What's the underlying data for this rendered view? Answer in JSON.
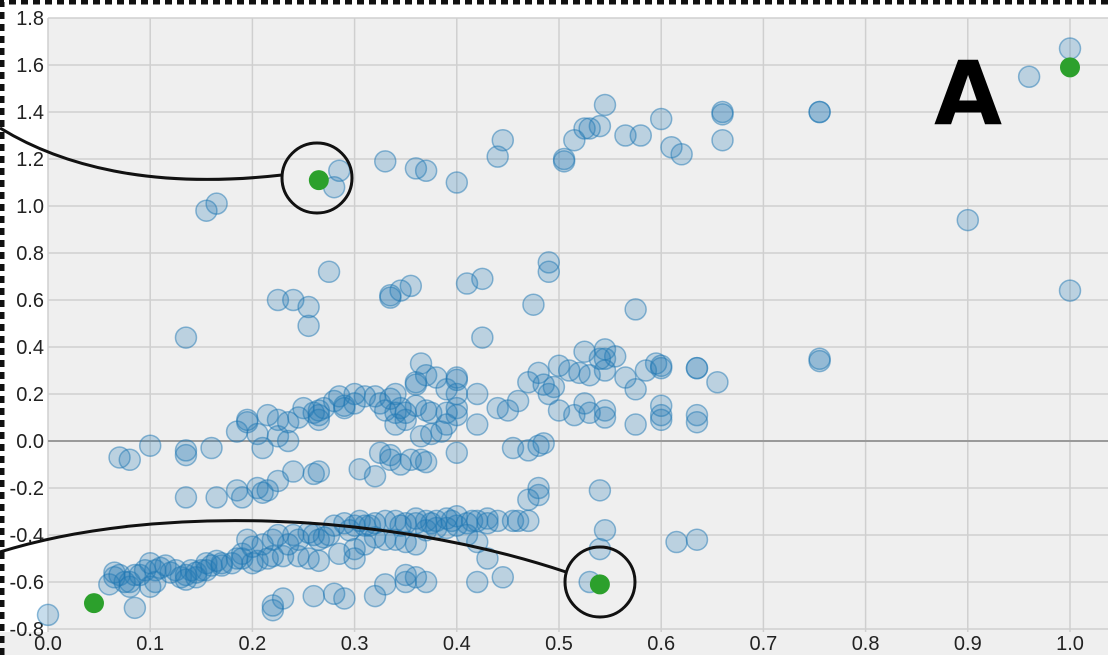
{
  "panel_label": "A",
  "colors": {
    "background": "#efefef",
    "grid": "#cfcfcf",
    "zero_line": "#9a9a9a",
    "point_fill": "#1f77b4",
    "point_stroke": "#1f77b4",
    "highlight": "#2ca02c",
    "border": "#111111"
  },
  "chart_data": {
    "type": "scatter",
    "title": "",
    "xlabel": "",
    "ylabel": "",
    "xlim": [
      0,
      1.04
    ],
    "ylim": [
      -0.8,
      1.8
    ],
    "grid": true,
    "xticks": [
      "0.0",
      "0.1",
      "0.2",
      "0.3",
      "0.4",
      "0.5",
      "0.6",
      "0.7",
      "0.8",
      "0.9",
      "1.0"
    ],
    "yticks": [
      "-0.8",
      "-0.6",
      "-0.4",
      "-0.2",
      "0.0",
      "0.2",
      "0.4",
      "0.6",
      "0.8",
      "1.0",
      "1.2",
      "1.4",
      "1.6",
      "1.8"
    ],
    "series": [
      {
        "points": [
          [
            0.155,
            0.98
          ],
          [
            0.165,
            1.01
          ],
          [
            0.285,
            1.15
          ],
          [
            0.28,
            1.08
          ],
          [
            0.33,
            1.19
          ],
          [
            0.36,
            1.16
          ],
          [
            0.37,
            1.15
          ],
          [
            0.4,
            1.1
          ],
          [
            0.44,
            1.21
          ],
          [
            0.445,
            1.28
          ],
          [
            0.505,
            1.19
          ],
          [
            0.505,
            1.2
          ],
          [
            0.515,
            1.28
          ],
          [
            0.525,
            1.33
          ],
          [
            0.53,
            1.33
          ],
          [
            0.54,
            1.34
          ],
          [
            0.545,
            1.43
          ],
          [
            0.565,
            1.3
          ],
          [
            0.58,
            1.3
          ],
          [
            0.6,
            1.37
          ],
          [
            0.61,
            1.25
          ],
          [
            0.62,
            1.22
          ],
          [
            0.66,
            1.28
          ],
          [
            0.66,
            1.39
          ],
          [
            0.66,
            1.4
          ],
          [
            0.755,
            1.4
          ],
          [
            0.755,
            1.4
          ],
          [
            0.96,
            1.55
          ],
          [
            1.0,
            1.67
          ],
          [
            0.9,
            0.94
          ],
          [
            1.0,
            0.64
          ],
          [
            0.755,
            0.35
          ],
          [
            0.755,
            0.34
          ],
          [
            0.135,
            0.44
          ],
          [
            0.225,
            0.6
          ],
          [
            0.24,
            0.6
          ],
          [
            0.255,
            0.57
          ],
          [
            0.255,
            0.49
          ],
          [
            0.275,
            0.72
          ],
          [
            0.335,
            0.62
          ],
          [
            0.335,
            0.61
          ],
          [
            0.345,
            0.64
          ],
          [
            0.355,
            0.66
          ],
          [
            0.41,
            0.67
          ],
          [
            0.425,
            0.69
          ],
          [
            0.425,
            0.44
          ],
          [
            0.49,
            0.76
          ],
          [
            0.49,
            0.72
          ],
          [
            0.475,
            0.58
          ],
          [
            0.575,
            0.56
          ],
          [
            0.5,
            0.32
          ],
          [
            0.51,
            0.3
          ],
          [
            0.52,
            0.29
          ],
          [
            0.525,
            0.38
          ],
          [
            0.53,
            0.28
          ],
          [
            0.54,
            0.35
          ],
          [
            0.545,
            0.39
          ],
          [
            0.545,
            0.35
          ],
          [
            0.555,
            0.36
          ],
          [
            0.545,
            0.3
          ],
          [
            0.565,
            0.27
          ],
          [
            0.575,
            0.22
          ],
          [
            0.585,
            0.3
          ],
          [
            0.595,
            0.33
          ],
          [
            0.6,
            0.32
          ],
          [
            0.6,
            0.31
          ],
          [
            0.635,
            0.31
          ],
          [
            0.635,
            0.31
          ],
          [
            0.655,
            0.25
          ],
          [
            0.6,
            0.15
          ],
          [
            0.6,
            0.11
          ],
          [
            0.6,
            0.09
          ],
          [
            0.635,
            0.11
          ],
          [
            0.635,
            0.08
          ],
          [
            0.575,
            0.07
          ],
          [
            0.545,
            0.1
          ],
          [
            0.545,
            0.13
          ],
          [
            0.53,
            0.12
          ],
          [
            0.525,
            0.16
          ],
          [
            0.515,
            0.11
          ],
          [
            0.5,
            0.13
          ],
          [
            0.49,
            0.2
          ],
          [
            0.485,
            0.24
          ],
          [
            0.48,
            0.29
          ],
          [
            0.47,
            0.25
          ],
          [
            0.495,
            0.23
          ],
          [
            0.44,
            0.14
          ],
          [
            0.45,
            0.13
          ],
          [
            0.46,
            0.17
          ],
          [
            0.42,
            0.2
          ],
          [
            0.42,
            0.07
          ],
          [
            0.485,
            -0.01
          ],
          [
            0.48,
            -0.02
          ],
          [
            0.47,
            -0.04
          ],
          [
            0.455,
            -0.03
          ],
          [
            0.4,
            0.27
          ],
          [
            0.4,
            0.26
          ],
          [
            0.4,
            0.2
          ],
          [
            0.39,
            0.22
          ],
          [
            0.38,
            0.27
          ],
          [
            0.37,
            0.28
          ],
          [
            0.365,
            0.33
          ],
          [
            0.36,
            0.25
          ],
          [
            0.36,
            0.24
          ],
          [
            0.36,
            0.15
          ],
          [
            0.37,
            0.13
          ],
          [
            0.375,
            0.12
          ],
          [
            0.39,
            0.12
          ],
          [
            0.4,
            0.14
          ],
          [
            0.4,
            0.11
          ],
          [
            0.39,
            0.07
          ],
          [
            0.385,
            0.04
          ],
          [
            0.375,
            0.03
          ],
          [
            0.365,
            0.02
          ],
          [
            0.34,
            0.2
          ],
          [
            0.335,
            0.18
          ],
          [
            0.33,
            0.13
          ],
          [
            0.34,
            0.12
          ],
          [
            0.345,
            0.14
          ],
          [
            0.35,
            0.12
          ],
          [
            0.35,
            0.09
          ],
          [
            0.34,
            0.07
          ],
          [
            0.325,
            0.16
          ],
          [
            0.32,
            0.19
          ],
          [
            0.31,
            0.19
          ],
          [
            0.3,
            0.2
          ],
          [
            0.3,
            0.16
          ],
          [
            0.29,
            0.14
          ],
          [
            0.29,
            0.15
          ],
          [
            0.285,
            0.19
          ],
          [
            0.28,
            0.17
          ],
          [
            0.27,
            0.14
          ],
          [
            0.265,
            0.13
          ],
          [
            0.265,
            0.11
          ],
          [
            0.265,
            0.09
          ],
          [
            0.26,
            0.12
          ],
          [
            0.25,
            0.14
          ],
          [
            0.245,
            0.1
          ],
          [
            0.235,
            0.08
          ],
          [
            0.225,
            0.09
          ],
          [
            0.215,
            0.11
          ],
          [
            0.205,
            0.03
          ],
          [
            0.195,
            0.09
          ],
          [
            0.195,
            0.08
          ],
          [
            0.185,
            0.04
          ],
          [
            0.235,
            0.0
          ],
          [
            0.225,
            0.02
          ],
          [
            0.21,
            -0.03
          ],
          [
            0.16,
            -0.03
          ],
          [
            0.135,
            -0.04
          ],
          [
            0.135,
            -0.06
          ],
          [
            0.1,
            -0.02
          ],
          [
            0.07,
            -0.07
          ],
          [
            0.08,
            -0.08
          ],
          [
            0.37,
            -0.09
          ],
          [
            0.365,
            -0.08
          ],
          [
            0.355,
            -0.08
          ],
          [
            0.345,
            -0.1
          ],
          [
            0.335,
            -0.06
          ],
          [
            0.325,
            -0.05
          ],
          [
            0.335,
            -0.08
          ],
          [
            0.32,
            -0.15
          ],
          [
            0.305,
            -0.12
          ],
          [
            0.4,
            -0.05
          ],
          [
            0.265,
            -0.13
          ],
          [
            0.26,
            -0.14
          ],
          [
            0.24,
            -0.13
          ],
          [
            0.225,
            -0.17
          ],
          [
            0.215,
            -0.21
          ],
          [
            0.21,
            -0.22
          ],
          [
            0.205,
            -0.2
          ],
          [
            0.19,
            -0.24
          ],
          [
            0.185,
            -0.21
          ],
          [
            0.165,
            -0.24
          ],
          [
            0.135,
            -0.24
          ],
          [
            0.54,
            -0.21
          ],
          [
            0.48,
            -0.2
          ],
          [
            0.48,
            -0.23
          ],
          [
            0.47,
            -0.25
          ],
          [
            0.47,
            -0.34
          ],
          [
            0.46,
            -0.34
          ],
          [
            0.455,
            -0.34
          ],
          [
            0.44,
            -0.34
          ],
          [
            0.43,
            -0.35
          ],
          [
            0.43,
            -0.33
          ],
          [
            0.42,
            -0.34
          ],
          [
            0.415,
            -0.34
          ],
          [
            0.41,
            -0.35
          ],
          [
            0.4,
            -0.32
          ],
          [
            0.39,
            -0.33
          ],
          [
            0.38,
            -0.34
          ],
          [
            0.375,
            -0.35
          ],
          [
            0.37,
            -0.34
          ],
          [
            0.36,
            -0.35
          ],
          [
            0.36,
            -0.33
          ],
          [
            0.35,
            -0.35
          ],
          [
            0.345,
            -0.36
          ],
          [
            0.34,
            -0.34
          ],
          [
            0.33,
            -0.34
          ],
          [
            0.32,
            -0.35
          ],
          [
            0.315,
            -0.36
          ],
          [
            0.31,
            -0.36
          ],
          [
            0.305,
            -0.34
          ],
          [
            0.3,
            -0.36
          ],
          [
            0.295,
            -0.38
          ],
          [
            0.29,
            -0.35
          ],
          [
            0.28,
            -0.36
          ],
          [
            0.275,
            -0.4
          ],
          [
            0.27,
            -0.41
          ],
          [
            0.265,
            -0.42
          ],
          [
            0.26,
            -0.4
          ],
          [
            0.255,
            -0.39
          ],
          [
            0.245,
            -0.42
          ],
          [
            0.24,
            -0.4
          ],
          [
            0.235,
            -0.44
          ],
          [
            0.225,
            -0.4
          ],
          [
            0.22,
            -0.42
          ],
          [
            0.21,
            -0.44
          ],
          [
            0.2,
            -0.45
          ],
          [
            0.195,
            -0.42
          ],
          [
            0.19,
            -0.48
          ],
          [
            0.185,
            -0.5
          ],
          [
            0.17,
            -0.52
          ],
          [
            0.165,
            -0.51
          ],
          [
            0.16,
            -0.53
          ],
          [
            0.155,
            -0.52
          ],
          [
            0.15,
            -0.55
          ],
          [
            0.145,
            -0.56
          ],
          [
            0.14,
            -0.55
          ],
          [
            0.135,
            -0.57
          ],
          [
            0.13,
            -0.58
          ],
          [
            0.125,
            -0.55
          ],
          [
            0.12,
            -0.56
          ],
          [
            0.115,
            -0.53
          ],
          [
            0.11,
            -0.54
          ],
          [
            0.105,
            -0.55
          ],
          [
            0.1,
            -0.52
          ],
          [
            0.095,
            -0.55
          ],
          [
            0.09,
            -0.57
          ],
          [
            0.085,
            -0.57
          ],
          [
            0.08,
            -0.6
          ],
          [
            0.075,
            -0.6
          ],
          [
            0.07,
            -0.57
          ],
          [
            0.065,
            -0.56
          ],
          [
            0.06,
            -0.61
          ],
          [
            0.105,
            -0.6
          ],
          [
            0.1,
            -0.62
          ],
          [
            0.08,
            -0.62
          ],
          [
            0.085,
            -0.71
          ],
          [
            0.135,
            -0.59
          ],
          [
            0.145,
            -0.58
          ],
          [
            0.155,
            -0.55
          ],
          [
            0.17,
            -0.53
          ],
          [
            0.18,
            -0.52
          ],
          [
            0.19,
            -0.5
          ],
          [
            0.2,
            -0.52
          ],
          [
            0.205,
            -0.51
          ],
          [
            0.215,
            -0.5
          ],
          [
            0.22,
            -0.49
          ],
          [
            0.23,
            -0.49
          ],
          [
            0.245,
            -0.49
          ],
          [
            0.255,
            -0.5
          ],
          [
            0.265,
            -0.51
          ],
          [
            0.285,
            -0.48
          ],
          [
            0.3,
            -0.46
          ],
          [
            0.3,
            -0.5
          ],
          [
            0.31,
            -0.44
          ],
          [
            0.32,
            -0.41
          ],
          [
            0.33,
            -0.42
          ],
          [
            0.34,
            -0.42
          ],
          [
            0.35,
            -0.43
          ],
          [
            0.36,
            -0.44
          ],
          [
            0.37,
            -0.38
          ],
          [
            0.38,
            -0.37
          ],
          [
            0.39,
            -0.37
          ],
          [
            0.395,
            -0.34
          ],
          [
            0.4,
            -0.36
          ],
          [
            0.41,
            -0.4
          ],
          [
            0.42,
            -0.43
          ],
          [
            0.43,
            -0.5
          ],
          [
            0.53,
            -0.6
          ],
          [
            0.545,
            -0.38
          ],
          [
            0.54,
            -0.46
          ],
          [
            0.615,
            -0.43
          ],
          [
            0.635,
            -0.42
          ],
          [
            0.26,
            -0.66
          ],
          [
            0.28,
            -0.65
          ],
          [
            0.29,
            -0.67
          ],
          [
            0.32,
            -0.66
          ],
          [
            0.33,
            -0.61
          ],
          [
            0.35,
            -0.6
          ],
          [
            0.35,
            -0.57
          ],
          [
            0.36,
            -0.58
          ],
          [
            0.37,
            -0.6
          ],
          [
            0.42,
            -0.6
          ],
          [
            0.445,
            -0.58
          ],
          [
            0.22,
            -0.7
          ],
          [
            0.22,
            -0.72
          ],
          [
            0.23,
            -0.67
          ],
          [
            0.0,
            -0.74
          ],
          [
            0.065,
            -0.58
          ]
        ]
      },
      {
        "points": [
          [
            0.265,
            1.11
          ],
          [
            1.0,
            1.59
          ],
          [
            0.045,
            -0.69
          ],
          [
            0.54,
            -0.61
          ]
        ]
      }
    ]
  }
}
